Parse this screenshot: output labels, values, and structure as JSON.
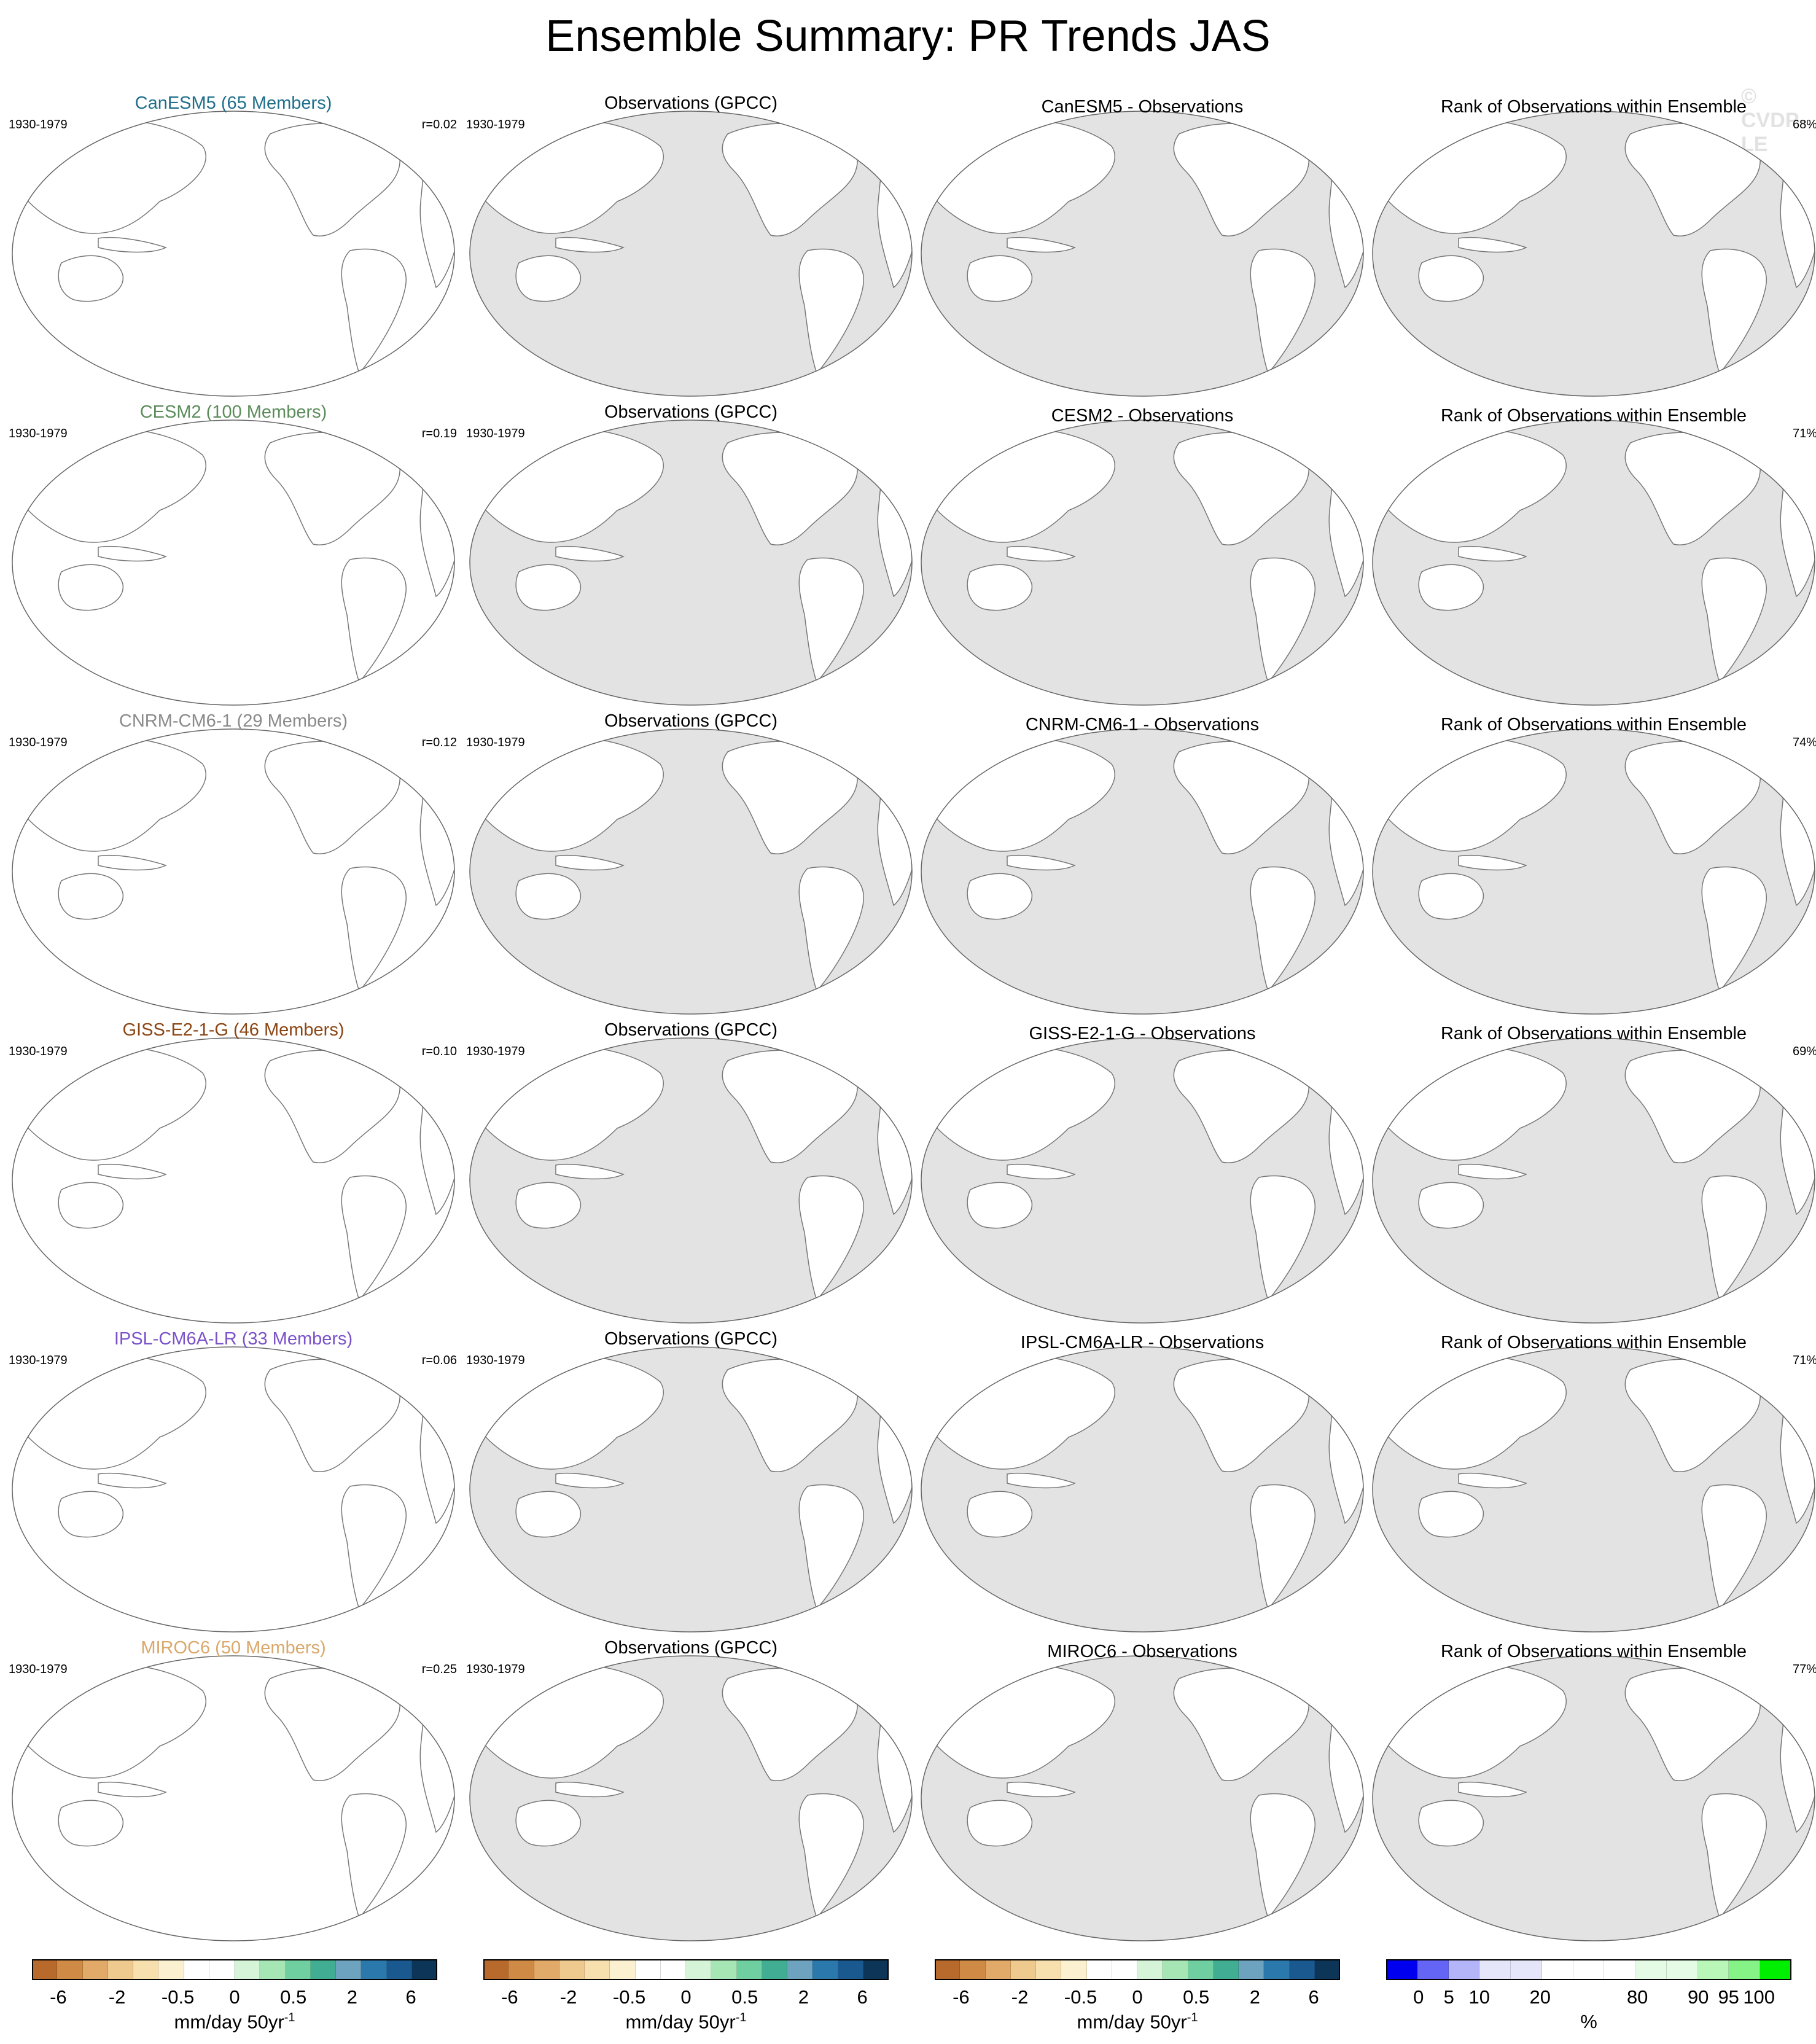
{
  "title": "Ensemble Summary: PR Trends JAS",
  "watermark": "© CVDP-LE",
  "columns": [
    "model",
    "observations",
    "difference",
    "rank"
  ],
  "rows": [
    {
      "model_title": "CanESM5 (65 Members)",
      "model_color": "#1f6f8b",
      "period": "1930-1979",
      "r": "r=0.02",
      "obs_title": "Observations (GPCC)",
      "diff_title": "CanESM5 - Observations",
      "rank_title": "Rank of Observations within Ensemble",
      "rank_pct": "68%"
    },
    {
      "model_title": "CESM2 (100 Members)",
      "model_color": "#5b8c5a",
      "period": "1930-1979",
      "r": "r=0.19",
      "obs_title": "Observations (GPCC)",
      "diff_title": "CESM2 - Observations",
      "rank_title": "Rank of Observations within Ensemble",
      "rank_pct": "71%"
    },
    {
      "model_title": "CNRM-CM6-1 (29 Members)",
      "model_color": "#8a8a8a",
      "period": "1930-1979",
      "r": "r=0.12",
      "obs_title": "Observations (GPCC)",
      "diff_title": "CNRM-CM6-1 - Observations",
      "rank_title": "Rank of Observations within Ensemble",
      "rank_pct": "74%"
    },
    {
      "model_title": "GISS-E2-1-G (46 Members)",
      "model_color": "#8b4513",
      "period": "1930-1979",
      "r": "r=0.10",
      "obs_title": "Observations (GPCC)",
      "diff_title": "GISS-E2-1-G - Observations",
      "rank_title": "Rank of Observations within Ensemble",
      "rank_pct": "69%"
    },
    {
      "model_title": "IPSL-CM6A-LR (33 Members)",
      "model_color": "#7b52c9",
      "period": "1930-1979",
      "r": "r=0.06",
      "obs_title": "Observations (GPCC)",
      "diff_title": "IPSL-CM6A-LR - Observations",
      "rank_title": "Rank of Observations within Ensemble",
      "rank_pct": "71%"
    },
    {
      "model_title": "MIROC6 (50 Members)",
      "model_color": "#d9a86c",
      "period": "1930-1979",
      "r": "r=0.25",
      "obs_title": "Observations (GPCC)",
      "diff_title": "MIROC6 - Observations",
      "rank_title": "Rank of Observations within Ensemble",
      "rank_pct": "77%"
    }
  ],
  "chart_data": {
    "type": "heatmap",
    "projection": "Robinson, Pacific-centered global maps",
    "colorbars": [
      {
        "units": "mm/day 50yr",
        "units_superscript": "-1",
        "tick_labels": [
          "-6",
          "-2",
          "-0.5",
          "0",
          "0.5",
          "2",
          "6"
        ],
        "colors": [
          "#b86a2c",
          "#cf8a46",
          "#e2aa68",
          "#efca8e",
          "#f7e0ad",
          "#fbf0cf",
          "#ffffff",
          "#ffffff",
          "#d6f5d8",
          "#a6e6b4",
          "#6fcfa0",
          "#41ad93",
          "#6ea3bf",
          "#2b78ad",
          "#1a5890",
          "#0c3557"
        ]
      },
      {
        "units": "mm/day 50yr",
        "units_superscript": "-1",
        "tick_labels": [
          "-6",
          "-2",
          "-0.5",
          "0",
          "0.5",
          "2",
          "6"
        ],
        "colors": [
          "#b86a2c",
          "#cf8a46",
          "#e2aa68",
          "#efca8e",
          "#f7e0ad",
          "#fbf0cf",
          "#ffffff",
          "#ffffff",
          "#d6f5d8",
          "#a6e6b4",
          "#6fcfa0",
          "#41ad93",
          "#6ea3bf",
          "#2b78ad",
          "#1a5890",
          "#0c3557"
        ]
      },
      {
        "units": "mm/day 50yr",
        "units_superscript": "-1",
        "tick_labels": [
          "-6",
          "-2",
          "-0.5",
          "0",
          "0.5",
          "2",
          "6"
        ],
        "colors": [
          "#b86a2c",
          "#cf8a46",
          "#e2aa68",
          "#efca8e",
          "#f7e0ad",
          "#fbf0cf",
          "#ffffff",
          "#ffffff",
          "#d6f5d8",
          "#a6e6b4",
          "#6fcfa0",
          "#41ad93",
          "#6ea3bf",
          "#2b78ad",
          "#1a5890",
          "#0c3557"
        ]
      },
      {
        "units": "%",
        "units_superscript": "",
        "tick_labels": [
          "0",
          "5",
          "10",
          "20",
          "80",
          "90",
          "95",
          "100"
        ],
        "colors": [
          "#0000ee",
          "#6464f5",
          "#b4b4f8",
          "#e6e6fb",
          "#e6e6fb",
          "#ffffff",
          "#ffffff",
          "#ffffff",
          "#e5fbe5",
          "#e5fbe5",
          "#b9f7b9",
          "#86f386",
          "#00ee00"
        ]
      }
    ]
  }
}
